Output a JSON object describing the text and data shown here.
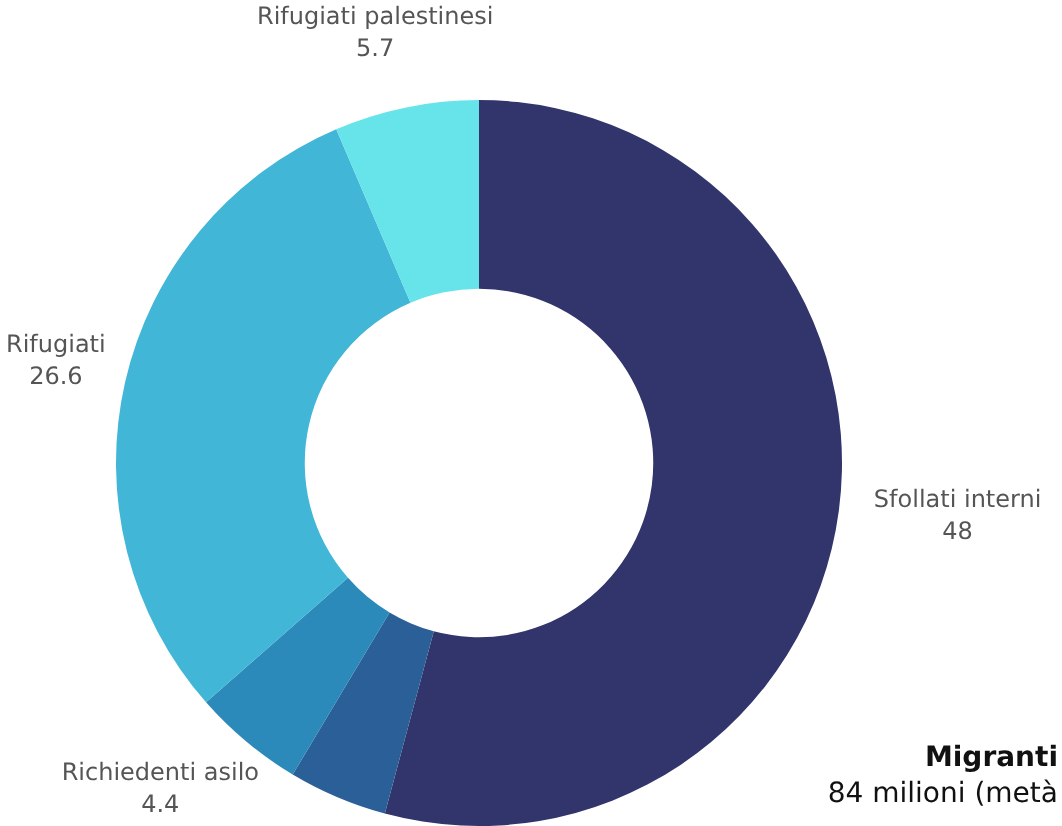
{
  "chart_data": {
    "type": "donut",
    "categories": [
      "Sfollati interni",
      null,
      "Richiedenti asilo",
      "Rifugiati",
      "Rifugiati palestinesi"
    ],
    "values": [
      48,
      3.9,
      4.4,
      26.6,
      5.7
    ],
    "colors": [
      "#31356b",
      "#2b5f97",
      "#2b8aba",
      "#41b6d6",
      "#67e3ea"
    ],
    "value_labels": [
      "48",
      null,
      "4.4",
      "26.6",
      "5.7"
    ],
    "legend": false,
    "annotations": [
      "Migranti",
      "84 milioni (metà"
    ]
  }
}
